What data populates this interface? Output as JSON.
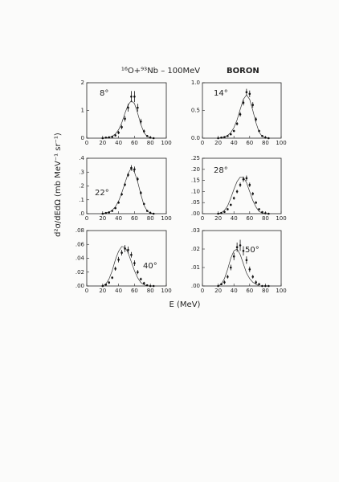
{
  "title": "¹⁶O+⁹³Nb – 100MeV",
  "annotation": "BORON",
  "xlabel": "E (MeV)",
  "ylabel": "d²σ/dEdΩ (mb MeV⁻¹ sr⁻¹)",
  "chart_data": [
    {
      "type": "errorbar",
      "annotation": "8°",
      "xlim": [
        0,
        100
      ],
      "xticks": [
        0,
        20,
        40,
        60,
        80,
        100
      ],
      "ylim": [
        0,
        2
      ],
      "yticks": [
        0,
        1,
        2
      ],
      "x": [
        20,
        24,
        28,
        32,
        36,
        40,
        44,
        48,
        52,
        56,
        60,
        64,
        68,
        72,
        76,
        80,
        84
      ],
      "values": [
        0,
        0.02,
        0.03,
        0.05,
        0.1,
        0.2,
        0.4,
        0.7,
        1.1,
        1.5,
        1.5,
        1.1,
        0.6,
        0.25,
        0.08,
        0.02,
        0
      ],
      "errors": [
        0,
        0.01,
        0.02,
        0.03,
        0.04,
        0.06,
        0.08,
        0.1,
        0.14,
        0.2,
        0.2,
        0.14,
        0.1,
        0.06,
        0.03,
        0.01,
        0
      ],
      "model": [
        0,
        0.01,
        0.03,
        0.07,
        0.15,
        0.3,
        0.55,
        0.9,
        1.2,
        1.35,
        1.25,
        0.9,
        0.5,
        0.2,
        0.06,
        0.01,
        0
      ]
    },
    {
      "type": "errorbar",
      "annotation": "14°",
      "xlim": [
        0,
        100
      ],
      "xticks": [
        0,
        20,
        40,
        60,
        80,
        100
      ],
      "ylim": [
        0,
        1
      ],
      "yticks": [
        {
          "value": 0,
          "label": "0.0"
        },
        {
          "value": 0.5,
          "label": "0.5"
        },
        {
          "value": 1,
          "label": "1.0"
        }
      ],
      "x": [
        20,
        24,
        28,
        32,
        36,
        40,
        44,
        48,
        52,
        56,
        60,
        64,
        68,
        72,
        76,
        80,
        84
      ],
      "values": [
        0,
        0.01,
        0.02,
        0.04,
        0.07,
        0.13,
        0.26,
        0.43,
        0.64,
        0.83,
        0.8,
        0.6,
        0.34,
        0.13,
        0.04,
        0.01,
        0
      ],
      "errors": [
        0,
        0.005,
        0.01,
        0.01,
        0.015,
        0.02,
        0.03,
        0.04,
        0.05,
        0.06,
        0.06,
        0.05,
        0.04,
        0.02,
        0.01,
        0.005,
        0
      ],
      "model": [
        0,
        0.01,
        0.02,
        0.05,
        0.1,
        0.19,
        0.33,
        0.52,
        0.7,
        0.78,
        0.7,
        0.5,
        0.28,
        0.11,
        0.03,
        0.01,
        0
      ]
    },
    {
      "type": "errorbar",
      "annotation": "22°",
      "xlim": [
        0,
        100
      ],
      "xticks": [
        0,
        20,
        40,
        60,
        80,
        100
      ],
      "ylim": [
        0,
        0.4
      ],
      "yticks": [
        {
          "value": 0,
          "label": ".0"
        },
        {
          "value": 0.1,
          "label": ".1"
        },
        {
          "value": 0.2,
          "label": ".2"
        },
        {
          "value": 0.3,
          "label": ".3"
        },
        {
          "value": 0.4,
          "label": ".4"
        }
      ],
      "x": [
        20,
        24,
        28,
        32,
        36,
        40,
        44,
        48,
        52,
        56,
        60,
        64,
        68,
        72,
        76,
        80,
        84
      ],
      "values": [
        0,
        0.005,
        0.01,
        0.02,
        0.04,
        0.08,
        0.14,
        0.21,
        0.28,
        0.33,
        0.32,
        0.25,
        0.15,
        0.07,
        0.02,
        0.005,
        0
      ],
      "errors": [
        0,
        0.003,
        0.004,
        0.005,
        0.006,
        0.008,
        0.01,
        0.012,
        0.015,
        0.02,
        0.02,
        0.015,
        0.012,
        0.008,
        0.005,
        0.003,
        0
      ],
      "model": [
        0,
        0.005,
        0.01,
        0.025,
        0.05,
        0.09,
        0.15,
        0.22,
        0.29,
        0.33,
        0.3,
        0.23,
        0.14,
        0.06,
        0.02,
        0.005,
        0
      ]
    },
    {
      "type": "errorbar",
      "annotation": "28°",
      "xlim": [
        0,
        100
      ],
      "xticks": [
        0,
        20,
        40,
        60,
        80,
        100
      ],
      "ylim": [
        0,
        0.25
      ],
      "yticks": [
        {
          "value": 0,
          "label": ".00"
        },
        {
          "value": 0.05,
          "label": ".05"
        },
        {
          "value": 0.1,
          "label": ".10"
        },
        {
          "value": 0.15,
          "label": ".15"
        },
        {
          "value": 0.2,
          "label": ".20"
        },
        {
          "value": 0.25,
          "label": ".25"
        }
      ],
      "x": [
        20,
        24,
        28,
        32,
        36,
        40,
        44,
        48,
        52,
        56,
        60,
        64,
        68,
        72,
        76,
        80,
        84
      ],
      "values": [
        0,
        0.003,
        0.008,
        0.02,
        0.04,
        0.07,
        0.1,
        0.13,
        0.155,
        0.16,
        0.13,
        0.09,
        0.05,
        0.02,
        0.007,
        0.002,
        0
      ],
      "errors": [
        0,
        0.002,
        0.003,
        0.004,
        0.005,
        0.007,
        0.008,
        0.01,
        0.012,
        0.012,
        0.01,
        0.008,
        0.006,
        0.004,
        0.003,
        0.002,
        0
      ],
      "model": [
        0,
        0.005,
        0.015,
        0.035,
        0.07,
        0.11,
        0.145,
        0.165,
        0.165,
        0.14,
        0.1,
        0.06,
        0.03,
        0.01,
        0.003,
        0,
        0
      ]
    },
    {
      "type": "errorbar",
      "annotation": "40°",
      "xlim": [
        0,
        100
      ],
      "xticks": [
        0,
        20,
        40,
        60,
        80,
        100
      ],
      "ylim": [
        0,
        0.08
      ],
      "yticks": [
        {
          "value": 0,
          "label": ".00"
        },
        {
          "value": 0.02,
          "label": ".02"
        },
        {
          "value": 0.04,
          "label": ".04"
        },
        {
          "value": 0.06,
          "label": ".06"
        },
        {
          "value": 0.08,
          "label": ".08"
        }
      ],
      "x": [
        20,
        24,
        28,
        32,
        36,
        40,
        44,
        48,
        52,
        56,
        60,
        64,
        68,
        72,
        76,
        80,
        84
      ],
      "values": [
        0,
        0.002,
        0.005,
        0.012,
        0.025,
        0.038,
        0.048,
        0.054,
        0.052,
        0.045,
        0.033,
        0.02,
        0.01,
        0.004,
        0.001,
        0,
        0
      ],
      "errors": [
        0,
        0.001,
        0.002,
        0.002,
        0.003,
        0.004,
        0.004,
        0.005,
        0.005,
        0.004,
        0.004,
        0.003,
        0.002,
        0.002,
        0.001,
        0,
        0
      ],
      "model": [
        0,
        0.003,
        0.01,
        0.022,
        0.038,
        0.05,
        0.057,
        0.056,
        0.048,
        0.035,
        0.022,
        0.012,
        0.005,
        0.002,
        0,
        0,
        0
      ]
    },
    {
      "type": "errorbar",
      "annotation": "50°",
      "xlim": [
        0,
        100
      ],
      "xticks": [
        0,
        20,
        40,
        60,
        80,
        100
      ],
      "ylim": [
        0,
        0.03
      ],
      "yticks": [
        {
          "value": 0,
          "label": ".00"
        },
        {
          "value": 0.01,
          "label": ".01"
        },
        {
          "value": 0.02,
          "label": ".02"
        },
        {
          "value": 0.03,
          "label": ".03"
        }
      ],
      "x": [
        20,
        24,
        28,
        32,
        36,
        40,
        44,
        48,
        52,
        56,
        60,
        64,
        68,
        72,
        76,
        80,
        84
      ],
      "values": [
        0,
        0.001,
        0.002,
        0.005,
        0.01,
        0.016,
        0.021,
        0.022,
        0.019,
        0.014,
        0.009,
        0.005,
        0.002,
        0.001,
        0,
        0,
        0
      ],
      "errors": [
        0,
        0.0005,
        0.001,
        0.001,
        0.0015,
        0.002,
        0.0025,
        0.003,
        0.0025,
        0.002,
        0.0015,
        0.001,
        0.001,
        0.0005,
        0,
        0,
        0
      ],
      "model": [
        0,
        0.001,
        0.004,
        0.009,
        0.015,
        0.019,
        0.02,
        0.017,
        0.012,
        0.007,
        0.004,
        0.002,
        0.001,
        0,
        0,
        0,
        0
      ]
    }
  ]
}
